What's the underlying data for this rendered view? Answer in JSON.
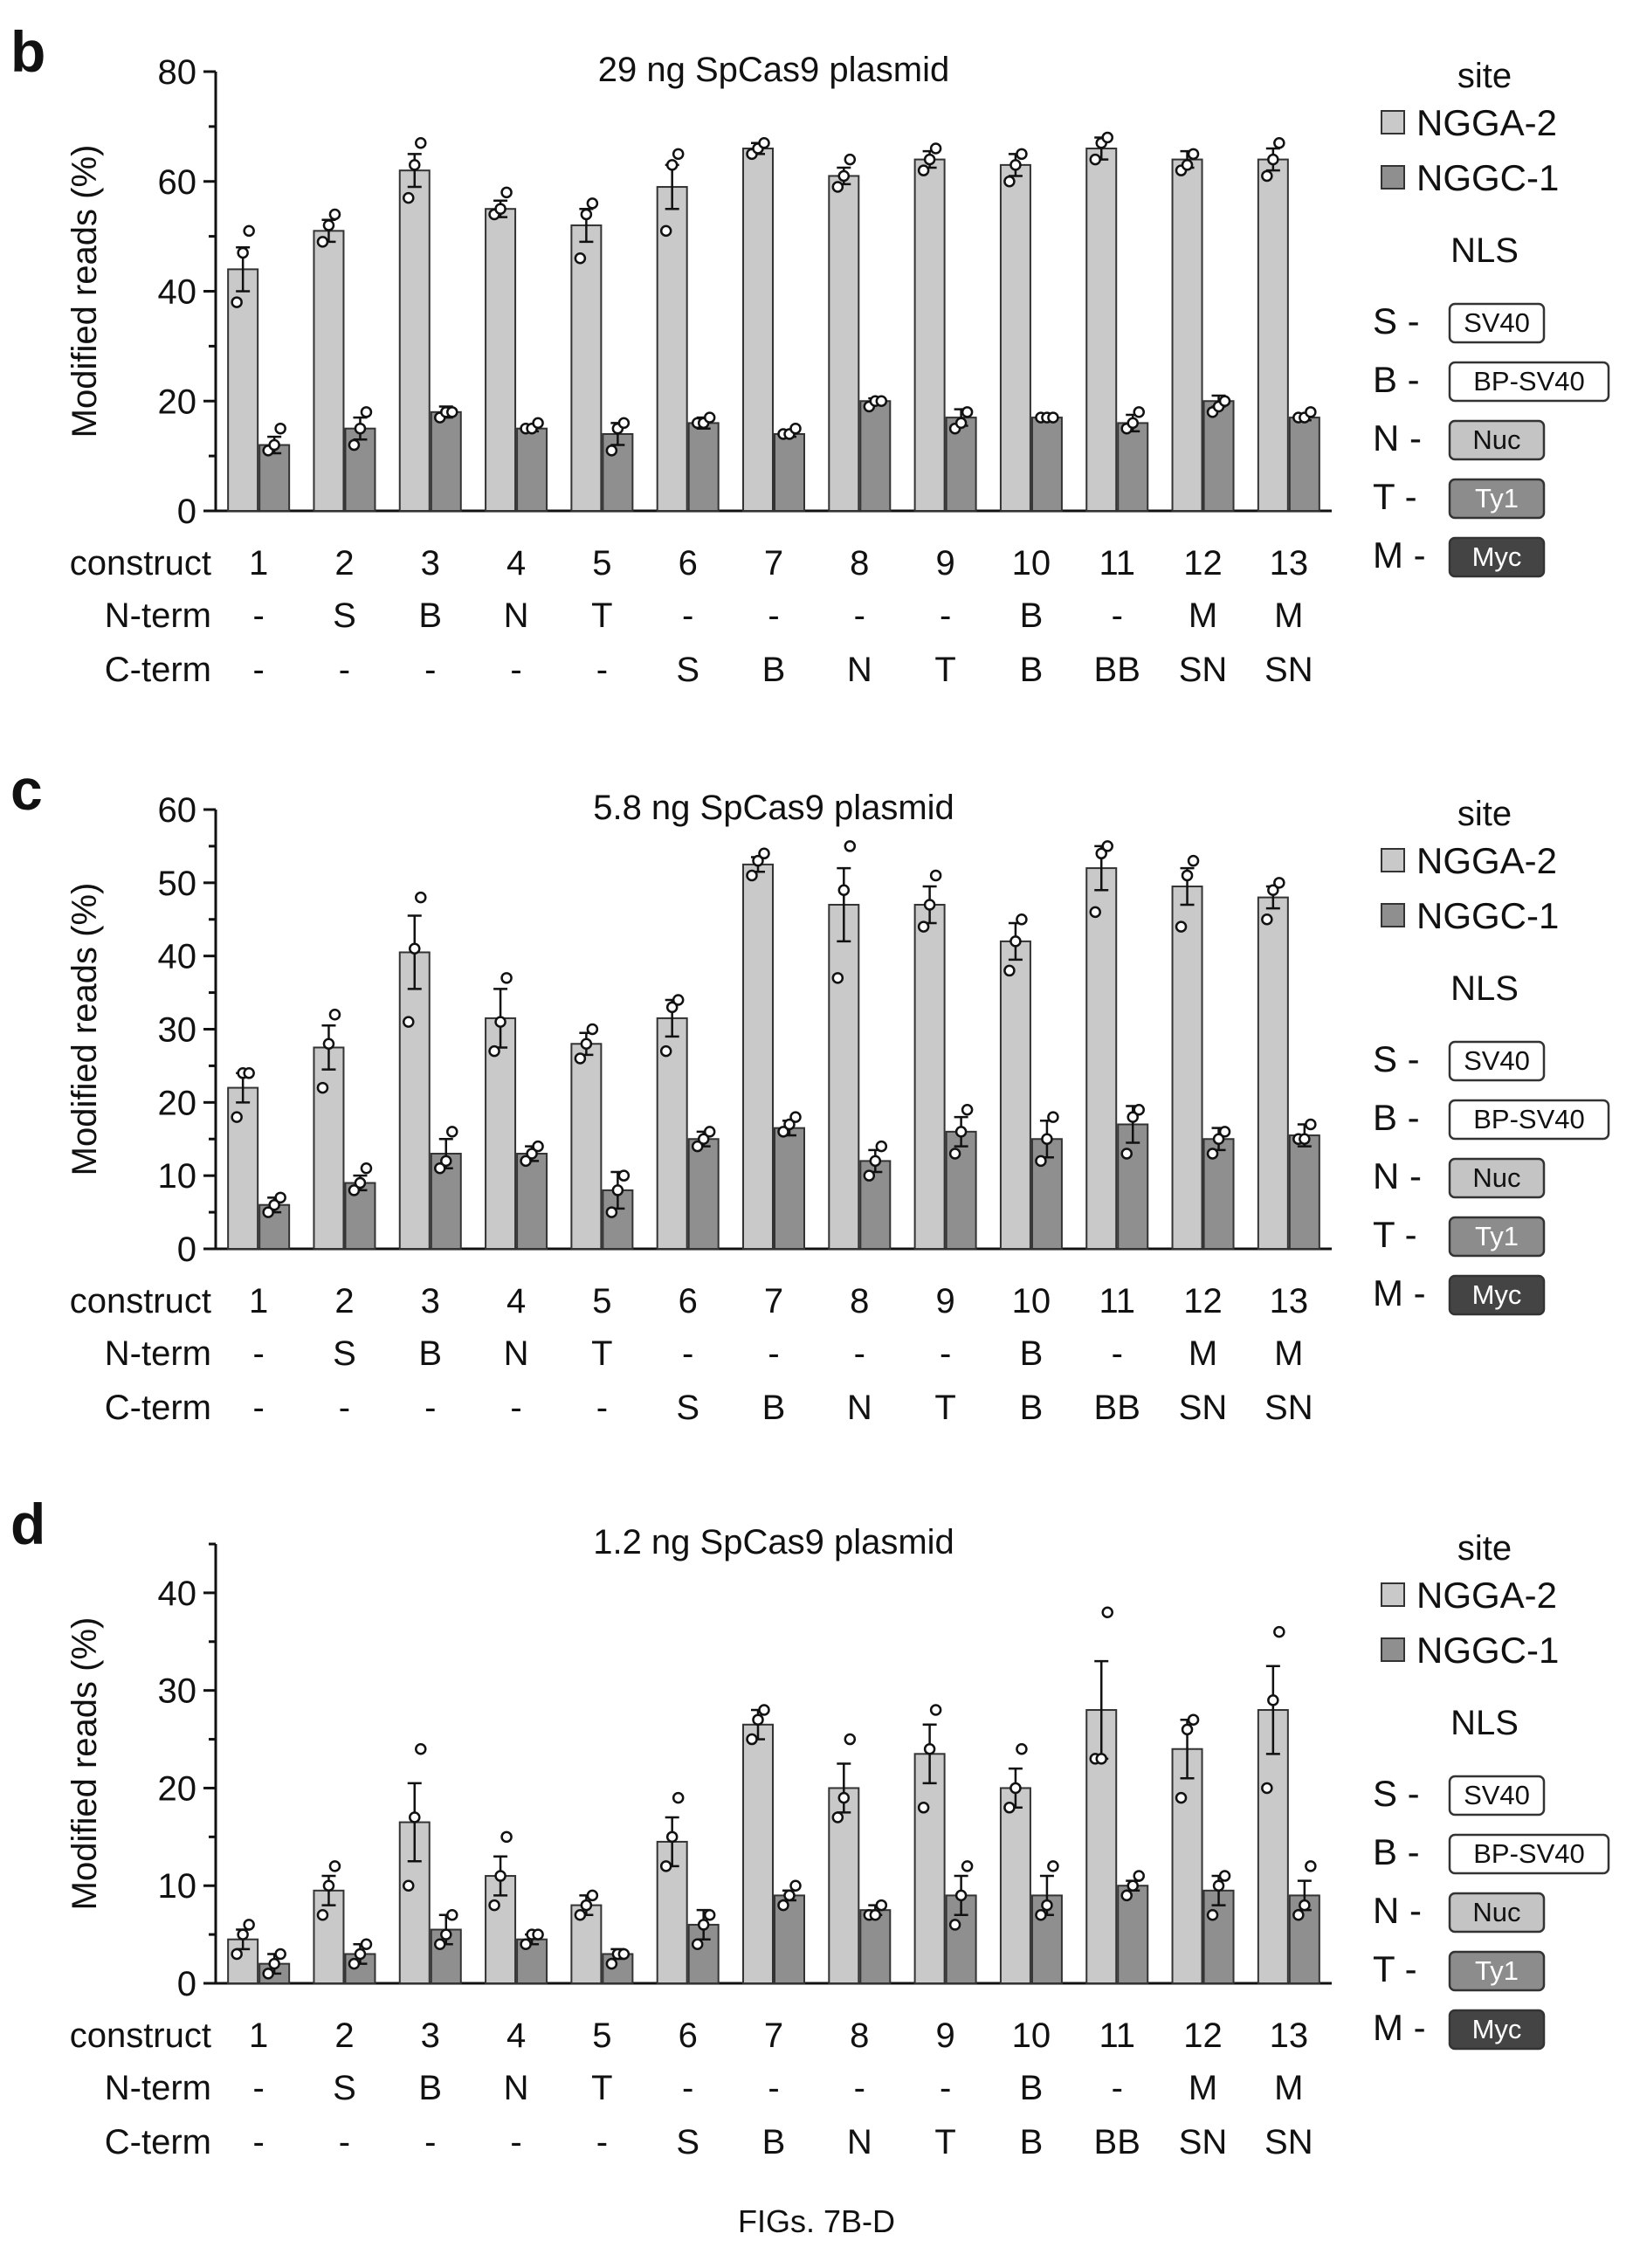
{
  "figure_caption": "FIGs. 7B-D",
  "colors": {
    "NGGA-2": "#c9c9c9",
    "NGGC-1": "#8f8f8f",
    "bar_stroke": "#333333",
    "SV40": "#ffffff",
    "BP-SV40": "#ffffff",
    "Nuc": "#c4c4c4",
    "Ty1": "#8c8c8c",
    "Myc": "#444444"
  },
  "row_labels": {
    "construct": "construct",
    "n_term": "N-term",
    "c_term": "C-term"
  },
  "constructs": [
    "1",
    "2",
    "3",
    "4",
    "5",
    "6",
    "7",
    "8",
    "9",
    "10",
    "11",
    "12",
    "13"
  ],
  "n_term": [
    "-",
    "S",
    "B",
    "N",
    "T",
    "-",
    "-",
    "-",
    "-",
    "B",
    "-",
    "M",
    "M"
  ],
  "c_term": [
    "-",
    "-",
    "-",
    "-",
    "-",
    "S",
    "B",
    "N",
    "T",
    "B",
    "BB",
    "SN",
    "SN"
  ],
  "legend": {
    "site_title": "site",
    "sites": [
      "NGGA-2",
      "NGGC-1"
    ],
    "nls_title": "NLS",
    "nls": [
      {
        "key": "S",
        "label": "SV40"
      },
      {
        "key": "B",
        "label": "BP-SV40"
      },
      {
        "key": "N",
        "label": "Nuc"
      },
      {
        "key": "T",
        "label": "Ty1"
      },
      {
        "key": "M",
        "label": "Myc"
      }
    ]
  },
  "chart_data": [
    {
      "type": "bar",
      "panel": "b",
      "title": "29 ng SpCas9 plasmid",
      "ylabel": "Modified reads (%)",
      "ylim": [
        0,
        80
      ],
      "yticks": [
        0,
        20,
        40,
        60,
        80
      ],
      "categories": [
        "1",
        "2",
        "3",
        "4",
        "5",
        "6",
        "7",
        "8",
        "9",
        "10",
        "11",
        "12",
        "13"
      ],
      "series": [
        {
          "name": "NGGA-2",
          "values": [
            44,
            51,
            62,
            55,
            52,
            59,
            66,
            61,
            64,
            63,
            66,
            64,
            64
          ],
          "error": [
            4,
            2,
            3,
            1.5,
            3,
            4,
            1,
            1.5,
            1.5,
            2,
            2,
            1.5,
            2
          ],
          "points": [
            [
              38,
              47,
              51
            ],
            [
              49,
              52,
              54
            ],
            [
              57,
              63,
              67
            ],
            [
              54,
              55,
              58
            ],
            [
              46,
              54,
              56
            ],
            [
              51,
              63,
              65
            ],
            [
              65,
              66,
              67
            ],
            [
              59,
              61,
              64
            ],
            [
              62,
              64,
              66
            ],
            [
              60,
              63,
              65
            ],
            [
              64,
              67,
              68
            ],
            [
              62,
              63,
              65
            ],
            [
              61,
              64,
              67
            ]
          ]
        },
        {
          "name": "NGGC-1",
          "values": [
            12,
            15,
            18,
            15,
            14,
            16,
            14,
            20,
            17,
            17,
            16,
            20,
            17
          ],
          "error": [
            1.5,
            2,
            1,
            0.5,
            2,
            1,
            0.5,
            0.5,
            1.5,
            0.5,
            1.5,
            1,
            0.5
          ],
          "points": [
            [
              11,
              12,
              15
            ],
            [
              12,
              15,
              18
            ],
            [
              17,
              18,
              18
            ],
            [
              15,
              15,
              16
            ],
            [
              11,
              15,
              16
            ],
            [
              16,
              16,
              17
            ],
            [
              14,
              14,
              15
            ],
            [
              19,
              20,
              20
            ],
            [
              15,
              16,
              18
            ],
            [
              17,
              17,
              17
            ],
            [
              15,
              16,
              18
            ],
            [
              18,
              19,
              20
            ],
            [
              17,
              17,
              18
            ]
          ]
        }
      ]
    },
    {
      "type": "bar",
      "panel": "c",
      "title": "5.8 ng SpCas9 plasmid",
      "ylabel": "Modified reads (%)",
      "ylim": [
        0,
        60
      ],
      "yticks": [
        0,
        10,
        20,
        30,
        40,
        50,
        60
      ],
      "categories": [
        "1",
        "2",
        "3",
        "4",
        "5",
        "6",
        "7",
        "8",
        "9",
        "10",
        "11",
        "12",
        "13"
      ],
      "series": [
        {
          "name": "NGGA-2",
          "values": [
            22,
            27.5,
            40.5,
            31.5,
            28,
            31.5,
            52.5,
            47,
            47,
            42,
            52,
            49.5,
            48
          ],
          "error": [
            2,
            3,
            5,
            4,
            1.5,
            2.5,
            1,
            5,
            2.5,
            2.5,
            3,
            2.5,
            1.5
          ],
          "points": [
            [
              18,
              24,
              24
            ],
            [
              22,
              28,
              32
            ],
            [
              31,
              41,
              48
            ],
            [
              27,
              31,
              37
            ],
            [
              26,
              28,
              30
            ],
            [
              27,
              33,
              34
            ],
            [
              51,
              53,
              54
            ],
            [
              37,
              49,
              55
            ],
            [
              44,
              47,
              51
            ],
            [
              38,
              42,
              45
            ],
            [
              46,
              54,
              55
            ],
            [
              44,
              51,
              53
            ],
            [
              45,
              49,
              50
            ]
          ]
        },
        {
          "name": "NGGC-1",
          "values": [
            6,
            9,
            13,
            13,
            8,
            15,
            16.5,
            12,
            16,
            15,
            17,
            15,
            15.5
          ],
          "error": [
            1,
            1,
            2,
            1,
            2.5,
            1,
            1,
            1.5,
            2,
            2.5,
            2.5,
            1.5,
            1.5
          ],
          "points": [
            [
              5,
              6,
              7
            ],
            [
              8,
              9,
              11
            ],
            [
              11,
              12,
              16
            ],
            [
              12,
              13,
              14
            ],
            [
              5,
              8,
              10
            ],
            [
              14,
              15,
              16
            ],
            [
              16,
              17,
              18
            ],
            [
              10,
              12,
              14
            ],
            [
              13,
              16,
              19
            ],
            [
              12,
              15,
              18
            ],
            [
              13,
              18,
              19
            ],
            [
              13,
              15,
              16
            ],
            [
              15,
              15,
              17
            ]
          ]
        }
      ]
    },
    {
      "type": "bar",
      "panel": "d",
      "title": "1.2 ng SpCas9 plasmid",
      "ylabel": "Modified reads (%)",
      "ylim": [
        0,
        45
      ],
      "yticks": [
        0,
        10,
        20,
        30,
        40
      ],
      "categories": [
        "1",
        "2",
        "3",
        "4",
        "5",
        "6",
        "7",
        "8",
        "9",
        "10",
        "11",
        "12",
        "13"
      ],
      "series": [
        {
          "name": "NGGA-2",
          "values": [
            4.5,
            9.5,
            16.5,
            11,
            8,
            14.5,
            26.5,
            20,
            23.5,
            20,
            28,
            24,
            28
          ],
          "error": [
            1,
            1.5,
            4,
            2,
            1,
            2.5,
            1.5,
            2.5,
            3,
            2,
            5,
            3,
            4.5
          ],
          "points": [
            [
              3,
              5,
              6
            ],
            [
              7,
              10,
              12
            ],
            [
              10,
              17,
              24
            ],
            [
              8,
              11,
              15
            ],
            [
              7,
              8,
              9
            ],
            [
              12,
              15,
              19
            ],
            [
              25,
              27,
              28
            ],
            [
              17,
              19,
              25
            ],
            [
              18,
              24,
              28
            ],
            [
              18,
              20,
              24
            ],
            [
              23,
              23,
              38
            ],
            [
              19,
              26,
              27
            ],
            [
              20,
              29,
              36
            ]
          ]
        },
        {
          "name": "NGGC-1",
          "values": [
            2,
            3,
            5.5,
            4.5,
            3,
            6,
            9,
            7.5,
            9,
            9,
            10,
            9.5,
            9
          ],
          "error": [
            1,
            1,
            1.5,
            0.5,
            0.5,
            1.5,
            0.5,
            0.5,
            2,
            2,
            0.5,
            1.5,
            1.5
          ],
          "points": [
            [
              1,
              2,
              3
            ],
            [
              2,
              3,
              4
            ],
            [
              4,
              5,
              7
            ],
            [
              4,
              5,
              5
            ],
            [
              2,
              3,
              3
            ],
            [
              4,
              6,
              7
            ],
            [
              8,
              9,
              10
            ],
            [
              7,
              7,
              8
            ],
            [
              6,
              9,
              12
            ],
            [
              7,
              8,
              12
            ],
            [
              9,
              10,
              11
            ],
            [
              7,
              10,
              11
            ],
            [
              7,
              8,
              12
            ]
          ]
        }
      ]
    }
  ]
}
